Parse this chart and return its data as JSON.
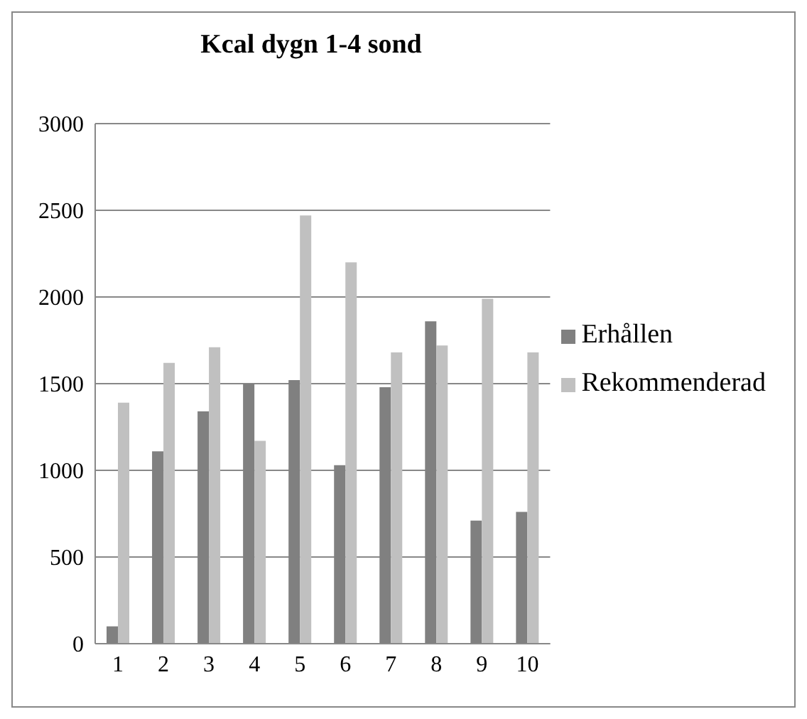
{
  "chart_data": {
    "type": "bar",
    "title": "Kcal dygn 1-4 sond",
    "categories": [
      "1",
      "2",
      "3",
      "4",
      "5",
      "6",
      "7",
      "8",
      "9",
      "10"
    ],
    "series": [
      {
        "name": "Erhållen",
        "color": "#808080",
        "values": [
          100,
          1110,
          1340,
          1500,
          1520,
          1030,
          1480,
          1860,
          710,
          760
        ]
      },
      {
        "name": "Rekommenderad",
        "color": "#c0c0c0",
        "values": [
          1390,
          1620,
          1710,
          1170,
          2470,
          2200,
          1680,
          1720,
          1990,
          1680
        ]
      }
    ],
    "ylim": [
      0,
      3000
    ],
    "yticks": [
      0,
      500,
      1000,
      1500,
      2000,
      2500,
      3000
    ],
    "grid": "y",
    "legend": "right"
  }
}
